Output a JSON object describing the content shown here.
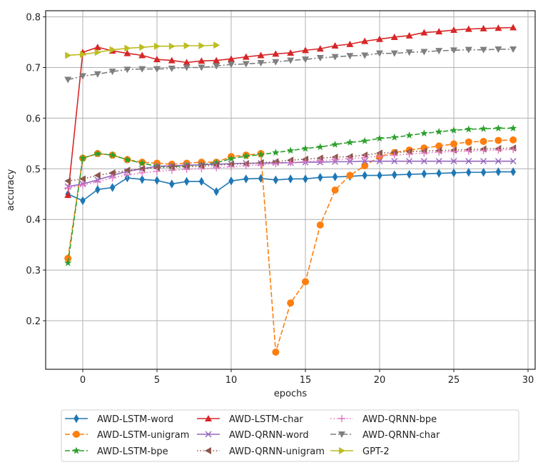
{
  "chart_data": {
    "type": "line",
    "title": "",
    "xlabel": "epochs",
    "ylabel": "accuracy",
    "xlim": [
      -2.5,
      30.5
    ],
    "ylim": [
      0.11,
      0.81
    ],
    "xticks": [
      0,
      5,
      10,
      15,
      20,
      25,
      30
    ],
    "xtick_labels": [
      "0",
      "5",
      "10",
      "15",
      "20",
      "25",
      "30"
    ],
    "yticks": [
      0.2,
      0.3,
      0.4,
      0.5,
      0.6,
      0.7,
      0.8
    ],
    "ytick_labels": [
      "0.2",
      "0.3",
      "0.4",
      "0.5",
      "0.6",
      "0.7",
      "0.8"
    ],
    "grid": true,
    "legend_placement": "bottom-center, outside, 3 columns",
    "series": [
      {
        "name": "AWD-LSTM-word",
        "color": "#1f77b4",
        "marker": "diamond",
        "dash": "solid",
        "x": [
          -1,
          0,
          1,
          2,
          3,
          4,
          5,
          6,
          7,
          8,
          9,
          10,
          11,
          12,
          13,
          14,
          15,
          16,
          17,
          18,
          19,
          20,
          21,
          22,
          23,
          24,
          25,
          26,
          27,
          28,
          29
        ],
        "y": [
          0.45,
          0.437,
          0.459,
          0.463,
          0.482,
          0.479,
          0.477,
          0.47,
          0.475,
          0.475,
          0.455,
          0.476,
          0.48,
          0.481,
          0.478,
          0.48,
          0.48,
          0.483,
          0.484,
          0.485,
          0.487,
          0.487,
          0.488,
          0.489,
          0.49,
          0.491,
          0.492,
          0.493,
          0.493,
          0.494,
          0.494
        ]
      },
      {
        "name": "AWD-LSTM-unigram",
        "color": "#ff7f0e",
        "marker": "circle",
        "dash": "dashed",
        "x": [
          -1,
          0,
          1,
          2,
          3,
          4,
          5,
          6,
          7,
          8,
          9,
          10,
          11,
          12,
          13,
          14,
          15,
          16,
          17,
          18,
          19,
          20,
          21,
          22,
          23,
          24,
          25,
          26,
          27,
          28,
          29
        ],
        "y": [
          0.323,
          0.521,
          0.53,
          0.527,
          0.518,
          0.513,
          0.511,
          0.509,
          0.511,
          0.513,
          0.513,
          0.524,
          0.527,
          0.53,
          0.138,
          0.235,
          0.277,
          0.389,
          0.458,
          0.487,
          0.506,
          0.524,
          0.532,
          0.537,
          0.541,
          0.545,
          0.549,
          0.553,
          0.554,
          0.556,
          0.557
        ]
      },
      {
        "name": "AWD-LSTM-bpe",
        "color": "#2ca02c",
        "marker": "star",
        "dash": "dashed",
        "x": [
          -1,
          0,
          1,
          2,
          3,
          4,
          5,
          6,
          7,
          8,
          9,
          10,
          11,
          12,
          13,
          14,
          15,
          16,
          17,
          18,
          19,
          20,
          21,
          22,
          23,
          24,
          25,
          26,
          27,
          28,
          29
        ],
        "y": [
          0.314,
          0.521,
          0.53,
          0.527,
          0.518,
          0.511,
          0.505,
          0.504,
          0.506,
          0.508,
          0.512,
          0.52,
          0.525,
          0.528,
          0.532,
          0.536,
          0.54,
          0.543,
          0.548,
          0.552,
          0.555,
          0.56,
          0.562,
          0.566,
          0.57,
          0.573,
          0.576,
          0.578,
          0.579,
          0.58,
          0.58
        ]
      },
      {
        "name": "AWD-LSTM-char",
        "color": "#d62728",
        "marker": "triangle-up",
        "dash": "solid",
        "x": [
          -1,
          0,
          1,
          2,
          3,
          4,
          5,
          6,
          7,
          8,
          9,
          10,
          11,
          12,
          13,
          14,
          15,
          16,
          17,
          18,
          19,
          20,
          21,
          22,
          23,
          24,
          25,
          26,
          27,
          28,
          29
        ],
        "y": [
          0.448,
          0.73,
          0.74,
          0.733,
          0.728,
          0.724,
          0.716,
          0.714,
          0.71,
          0.713,
          0.714,
          0.717,
          0.721,
          0.724,
          0.727,
          0.729,
          0.734,
          0.737,
          0.743,
          0.746,
          0.752,
          0.756,
          0.76,
          0.763,
          0.769,
          0.771,
          0.774,
          0.776,
          0.777,
          0.778,
          0.779
        ]
      },
      {
        "name": "AWD-QRNN-word",
        "color": "#9467bd",
        "marker": "x",
        "dash": "solid",
        "x": [
          -1,
          0,
          1,
          2,
          3,
          4,
          5,
          6,
          7,
          8,
          9,
          10,
          11,
          12,
          13,
          14,
          15,
          16,
          17,
          18,
          19,
          20,
          21,
          22,
          23,
          24,
          25,
          26,
          27,
          28,
          29
        ],
        "y": [
          0.465,
          0.47,
          0.478,
          0.487,
          0.495,
          0.5,
          0.505,
          0.506,
          0.507,
          0.508,
          0.509,
          0.51,
          0.511,
          0.511,
          0.512,
          0.512,
          0.513,
          0.513,
          0.514,
          0.514,
          0.515,
          0.515,
          0.515,
          0.515,
          0.515,
          0.515,
          0.515,
          0.515,
          0.515,
          0.515,
          0.515
        ]
      },
      {
        "name": "AWD-QRNN-unigram",
        "color": "#8c564b",
        "marker": "triangle-left",
        "dash": "dotted",
        "x": [
          -1,
          0,
          1,
          2,
          3,
          4,
          5,
          6,
          7,
          8,
          9,
          10,
          11,
          12,
          13,
          14,
          15,
          16,
          17,
          18,
          19,
          20,
          21,
          22,
          23,
          24,
          25,
          26,
          27,
          28,
          29
        ],
        "y": [
          0.476,
          0.48,
          0.487,
          0.492,
          0.497,
          0.5,
          0.502,
          0.503,
          0.504,
          0.505,
          0.507,
          0.509,
          0.51,
          0.512,
          0.514,
          0.517,
          0.519,
          0.521,
          0.523,
          0.524,
          0.527,
          0.531,
          0.532,
          0.534,
          0.535,
          0.536,
          0.537,
          0.538,
          0.539,
          0.54,
          0.541
        ]
      },
      {
        "name": "AWD-QRNN-bpe",
        "color": "#e377c2",
        "marker": "plus",
        "dash": "dotted",
        "x": [
          -1,
          0,
          1,
          2,
          3,
          4,
          5,
          6,
          7,
          8,
          9,
          10,
          11,
          12,
          13,
          14,
          15,
          16,
          17,
          18,
          19,
          20,
          21,
          22,
          23,
          24,
          25,
          26,
          27,
          28,
          29
        ],
        "y": [
          0.462,
          0.468,
          0.474,
          0.482,
          0.488,
          0.492,
          0.495,
          0.497,
          0.499,
          0.5,
          0.502,
          0.504,
          0.506,
          0.508,
          0.51,
          0.512,
          0.514,
          0.516,
          0.518,
          0.52,
          0.522,
          0.525,
          0.527,
          0.529,
          0.531,
          0.533,
          0.534,
          0.535,
          0.536,
          0.537,
          0.538
        ]
      },
      {
        "name": "AWD-QRNN-char",
        "color": "#7f7f7f",
        "marker": "triangle-down",
        "dash": "dashdot",
        "x": [
          -1,
          0,
          1,
          2,
          3,
          4,
          5,
          6,
          7,
          8,
          9,
          10,
          11,
          12,
          13,
          14,
          15,
          16,
          17,
          18,
          19,
          20,
          21,
          22,
          23,
          24,
          25,
          26,
          27,
          28,
          29
        ],
        "y": [
          0.676,
          0.683,
          0.687,
          0.692,
          0.696,
          0.697,
          0.697,
          0.698,
          0.7,
          0.7,
          0.703,
          0.706,
          0.707,
          0.709,
          0.711,
          0.714,
          0.716,
          0.719,
          0.721,
          0.723,
          0.724,
          0.728,
          0.728,
          0.73,
          0.731,
          0.733,
          0.734,
          0.735,
          0.735,
          0.736,
          0.736
        ]
      },
      {
        "name": "GPT-2",
        "color": "#bcbd22",
        "marker": "triangle-right",
        "dash": "solid",
        "x": [
          -1,
          0,
          1,
          2,
          3,
          4,
          5,
          6,
          7,
          8,
          9
        ],
        "y": [
          0.724,
          0.726,
          0.73,
          0.735,
          0.738,
          0.74,
          0.742,
          0.742,
          0.743,
          0.743,
          0.744
        ]
      }
    ]
  }
}
